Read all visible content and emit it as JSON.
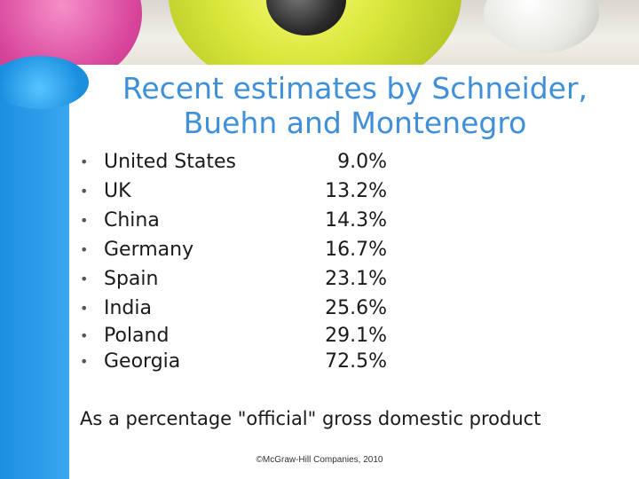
{
  "title_lines": [
    "Recent estimates by Schneider,",
    "Buehn and Montenegro"
  ],
  "bullet_glyph": "•",
  "rows": [
    {
      "country": "United States",
      "value": "9.0%"
    },
    {
      "country": "UK",
      "value": "13.2%"
    },
    {
      "country": "China",
      "value": "14.3%"
    },
    {
      "country": "Germany",
      "value": "16.7%"
    },
    {
      "country": "Spain",
      "value": "23.1%"
    },
    {
      "country": "India",
      "value": "25.6%"
    },
    {
      "country": "Poland",
      "value": "29.1%"
    },
    {
      "country": "Georgia",
      "value": "72.5%"
    }
  ],
  "footnote": "As a percentage \"official\" gross domestic product",
  "copyright": "©McGraw-Hill Companies, 2010",
  "colors": {
    "title": "#3f8fd9",
    "accent_bar": "#1c8fe0"
  }
}
